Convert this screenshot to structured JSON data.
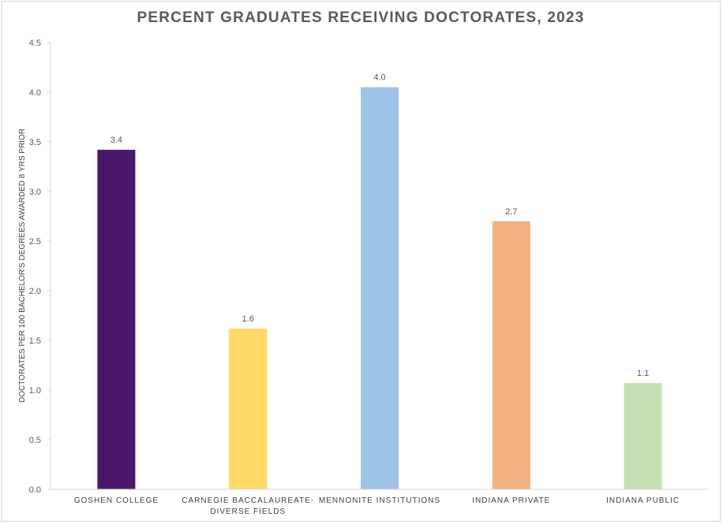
{
  "chart_data": {
    "type": "bar",
    "title": "PERCENT GRADUATES RECEIVING DOCTORATES, 2023",
    "xlabel": "",
    "ylabel": "DOCTORATES PER 100 BACHELOR'S DEGREES AWARDED 8 YRS PRIOR",
    "ylim": [
      0,
      4.5
    ],
    "yticks": [
      "0.0",
      "0.5",
      "1.0",
      "1.5",
      "2.0",
      "2.5",
      "3.0",
      "3.5",
      "4.0",
      "4.5"
    ],
    "categories": [
      [
        "GOSHEN COLLEGE"
      ],
      [
        "CARNEGIE BACCALAUREATE-",
        "DIVERSE FIELDS"
      ],
      [
        "MENNONITE INSTITUTIONS"
      ],
      [
        "INDIANA PRIVATE"
      ],
      [
        "INDIANA PUBLIC"
      ]
    ],
    "values": [
      3.42,
      1.62,
      4.05,
      2.7,
      1.07
    ],
    "data_labels": [
      "3.4",
      "1.6",
      "4.0",
      "2.7",
      "1.1"
    ],
    "colors": [
      "#4b176b",
      "#ffd966",
      "#9dc3e6",
      "#f4b183",
      "#c5e0b4"
    ],
    "grid": false,
    "legend": "none"
  }
}
